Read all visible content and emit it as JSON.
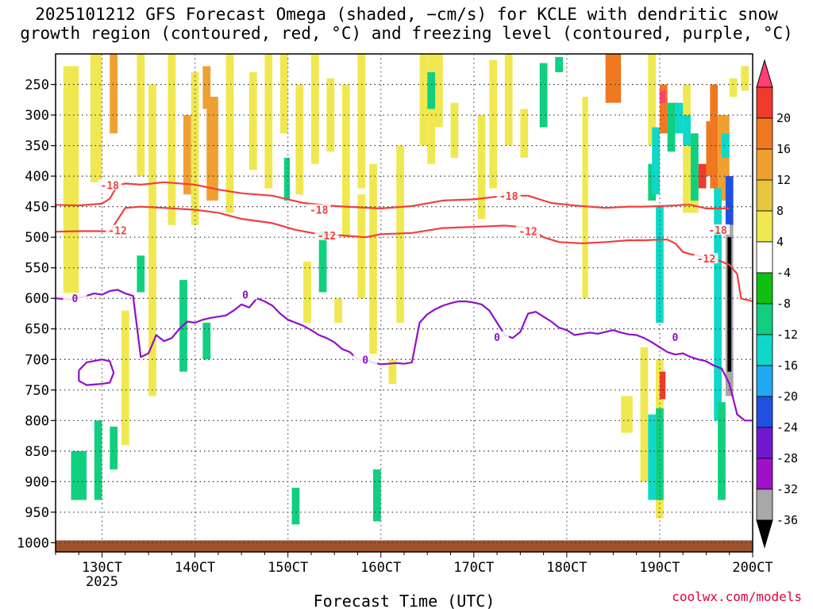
{
  "title": {
    "line1": "2025101212 GFS Forecast Omega (shaded, −cm/s) for KCLE with dendritic snow",
    "line2": "growth region (contoured, red, °C) and freezing level (contoured, purple, °C)"
  },
  "watermark": "coolwx.com/models",
  "chart_data": {
    "type": "heatmap",
    "xlabel": "Forecast Time (UTC)",
    "x_ticks": [
      "130CT",
      "140CT",
      "150CT",
      "160CT",
      "170CT",
      "180CT",
      "190CT",
      "200CT"
    ],
    "x_tick_hours": [
      0,
      24,
      48,
      72,
      96,
      120,
      144,
      168
    ],
    "x_tick_sublabel": "2025",
    "x_range_hours": [
      -12,
      168
    ],
    "y_ticks": [
      250,
      300,
      350,
      400,
      450,
      500,
      550,
      600,
      650,
      700,
      750,
      800,
      850,
      900,
      950,
      1000
    ],
    "y_axis_units": "hPa",
    "y_range": [
      200,
      1015
    ],
    "grid": true,
    "colorbar": {
      "labels": [
        20,
        16,
        12,
        8,
        4,
        -4,
        -8,
        -12,
        -16,
        -20,
        -24,
        -28,
        -32,
        -36
      ],
      "colors": [
        "#ff4070",
        "#f03a2a",
        "#f07820",
        "#f0a030",
        "#e8c640",
        "#f0e850",
        "#ffffff",
        "#10c010",
        "#10d080",
        "#10d8c8",
        "#20a8f0",
        "#2050e0",
        "#7018d0",
        "#a010c8",
        "#a8a8a8",
        "#000000"
      ],
      "top_color": "#ff4070",
      "bottom_color": "#000000"
    },
    "surface_color": "#a0522d",
    "series": [
      {
        "name": "-18",
        "color": "#f04040",
        "labels": [
          [
            2,
            415
          ],
          [
            56,
            455
          ],
          [
            105,
            432
          ],
          [
            159,
            488
          ]
        ],
        "x": [
          -12,
          -6,
          0,
          2,
          4,
          6,
          10,
          16,
          24,
          30,
          36,
          44,
          52,
          60,
          66,
          72,
          80,
          88,
          96,
          104,
          110,
          116,
          122,
          130,
          136,
          140,
          144,
          148,
          150,
          152,
          154,
          156,
          158,
          160,
          162
        ],
        "y": [
          447,
          448,
          445,
          437,
          415,
          412,
          414,
          410,
          414,
          422,
          428,
          432,
          444,
          449,
          451,
          453,
          449,
          440,
          438,
          432,
          432,
          444,
          448,
          452,
          450,
          450,
          449,
          448,
          447,
          447,
          450,
          453,
          453,
          453,
          453
        ]
      },
      {
        "name": "-12",
        "color": "#f04040",
        "labels": [
          [
            4,
            489
          ],
          [
            58,
            497
          ],
          [
            110,
            490
          ],
          [
            156,
            535
          ]
        ],
        "x": [
          -12,
          -6,
          0,
          2,
          6,
          10,
          16,
          24,
          30,
          36,
          44,
          50,
          56,
          62,
          68,
          72,
          80,
          88,
          96,
          104,
          110,
          114,
          118,
          124,
          130,
          136,
          140,
          144,
          146,
          148,
          150,
          152,
          154,
          156,
          158,
          162,
          164,
          165,
          166,
          167,
          168
        ],
        "y": [
          491,
          490,
          490,
          491,
          452,
          450,
          452,
          455,
          460,
          470,
          477,
          488,
          495,
          497,
          500,
          495,
          493,
          485,
          483,
          481,
          484,
          500,
          508,
          510,
          508,
          505,
          505,
          504,
          504,
          510,
          524,
          528,
          530,
          535,
          535,
          545,
          560,
          600,
          602,
          603,
          605
        ]
      },
      {
        "name": "0",
        "color": "#9010c8",
        "labels": [
          [
            -7,
            600
          ],
          [
            37,
            594
          ],
          [
            68,
            700
          ],
          [
            102,
            663
          ],
          [
            148,
            663
          ]
        ],
        "x": [
          -12,
          -8,
          -4,
          -2,
          0,
          2,
          4,
          6,
          8,
          10,
          12,
          14,
          16,
          18,
          20,
          22,
          24,
          26,
          28,
          30,
          32,
          34,
          36,
          38,
          40,
          42,
          44,
          46,
          48,
          50,
          52,
          54,
          56,
          58,
          60,
          62,
          64,
          66,
          68,
          70,
          72,
          74,
          76,
          78,
          80,
          82,
          84,
          86,
          88,
          90,
          92,
          94,
          96,
          98,
          100,
          102,
          104,
          106,
          108,
          110,
          112,
          114,
          116,
          118,
          120,
          122,
          124,
          126,
          128,
          130,
          132,
          134,
          136,
          138,
          140,
          142,
          144,
          146,
          148,
          150,
          152,
          154,
          156,
          158,
          160,
          162,
          164,
          166,
          168
        ],
        "y": [
          600,
          602,
          596,
          592,
          594,
          588,
          586,
          592,
          596,
          696,
          690,
          660,
          670,
          665,
          650,
          638,
          640,
          635,
          632,
          630,
          628,
          620,
          610,
          615,
          600,
          605,
          612,
          625,
          635,
          640,
          645,
          652,
          660,
          665,
          672,
          683,
          688,
          700,
          700,
          705,
          708,
          707,
          706,
          707,
          705,
          640,
          626,
          618,
          612,
          608,
          605,
          605,
          607,
          610,
          620,
          640,
          660,
          665,
          655,
          625,
          622,
          630,
          638,
          648,
          652,
          660,
          658,
          656,
          658,
          655,
          652,
          656,
          659,
          660,
          665,
          672,
          680,
          688,
          692,
          690,
          696,
          700,
          703,
          710,
          715,
          740,
          790,
          800,
          800
        ]
      },
      {
        "name": "0-closed",
        "color": "#9010c8",
        "labels": [],
        "x": [
          -6,
          -4,
          0,
          2,
          3,
          2,
          0,
          -4,
          -6,
          -6
        ],
        "y": [
          718,
          705,
          700,
          703,
          722,
          738,
          740,
          742,
          735,
          718
        ]
      }
    ],
    "omega_patches": [
      {
        "x": [
          -10,
          -6
        ],
        "p": [
          220,
          600
        ],
        "v": 6
      },
      {
        "x": [
          -3,
          0
        ],
        "p": [
          200,
          410
        ],
        "v": 6
      },
      {
        "x": [
          2,
          4
        ],
        "p": [
          200,
          330
        ],
        "v": 8
      },
      {
        "x": [
          9,
          11
        ],
        "p": [
          200,
          400
        ],
        "v": 7
      },
      {
        "x": [
          12,
          14
        ],
        "p": [
          250,
          760
        ],
        "v": 6
      },
      {
        "x": [
          17,
          19
        ],
        "p": [
          200,
          480
        ],
        "v": 6
      },
      {
        "x": [
          21,
          23
        ],
        "p": [
          300,
          430
        ],
        "v": 9
      },
      {
        "x": [
          23,
          25
        ],
        "p": [
          230,
          480
        ],
        "v": 6
      },
      {
        "x": [
          26,
          28
        ],
        "p": [
          220,
          290
        ],
        "v": 8
      },
      {
        "x": [
          27,
          30
        ],
        "p": [
          270,
          440
        ],
        "v": 9
      },
      {
        "x": [
          32,
          34
        ],
        "p": [
          200,
          460
        ],
        "v": 6
      },
      {
        "x": [
          38,
          40
        ],
        "p": [
          230,
          390
        ],
        "v": 6
      },
      {
        "x": [
          42,
          44
        ],
        "p": [
          200,
          420
        ],
        "v": 6
      },
      {
        "x": [
          46,
          48
        ],
        "p": [
          200,
          330
        ],
        "v": 6
      },
      {
        "x": [
          50,
          52
        ],
        "p": [
          250,
          430
        ],
        "v": 6
      },
      {
        "x": [
          54,
          56
        ],
        "p": [
          200,
          380
        ],
        "v": 6
      },
      {
        "x": [
          58,
          60
        ],
        "p": [
          240,
          360
        ],
        "v": 6
      },
      {
        "x": [
          62,
          64
        ],
        "p": [
          250,
          500
        ],
        "v": 6
      },
      {
        "x": [
          66,
          68
        ],
        "p": [
          200,
          420
        ],
        "v": 6
      },
      {
        "x": [
          69,
          71
        ],
        "p": [
          380,
          700
        ],
        "v": 6
      },
      {
        "x": [
          76,
          78
        ],
        "p": [
          350,
          640
        ],
        "v": 6
      },
      {
        "x": [
          82,
          84
        ],
        "p": [
          200,
          350
        ],
        "v": 6
      },
      {
        "x": [
          84,
          86
        ],
        "p": [
          200,
          380
        ],
        "v": 6
      },
      {
        "x": [
          86,
          88
        ],
        "p": [
          200,
          320
        ],
        "v": 6
      },
      {
        "x": [
          90,
          92
        ],
        "p": [
          280,
          370
        ],
        "v": 6
      },
      {
        "x": [
          97,
          99
        ],
        "p": [
          300,
          470
        ],
        "v": 6
      },
      {
        "x": [
          100,
          102
        ],
        "p": [
          210,
          420
        ],
        "v": 6
      },
      {
        "x": [
          104,
          106
        ],
        "p": [
          200,
          350
        ],
        "v": 6
      },
      {
        "x": [
          108,
          110
        ],
        "p": [
          290,
          370
        ],
        "v": 6
      },
      {
        "x": [
          124,
          125.5
        ],
        "p": [
          270,
          600
        ],
        "v": 6
      },
      {
        "x": [
          130,
          134
        ],
        "p": [
          200,
          280
        ],
        "v": 12
      },
      {
        "x": [
          141,
          143
        ],
        "p": [
          200,
          350
        ],
        "v": 6
      },
      {
        "x": [
          144,
          146
        ],
        "p": [
          250,
          330
        ],
        "v": 12
      },
      {
        "x": [
          147,
          150
        ],
        "p": [
          280,
          330
        ],
        "v": 6
      },
      {
        "x": [
          150,
          152
        ],
        "p": [
          250,
          460
        ],
        "v": 6
      },
      {
        "x": [
          152,
          154
        ],
        "p": [
          400,
          460
        ],
        "v": 6
      },
      {
        "x": [
          157,
          159
        ],
        "p": [
          250,
          420
        ],
        "v": 12
      },
      {
        "x": [
          159,
          162
        ],
        "p": [
          300,
          440
        ],
        "v": 8
      },
      {
        "x": [
          162,
          164
        ],
        "p": [
          240,
          270
        ],
        "v": 6
      },
      {
        "x": [
          165,
          167
        ],
        "p": [
          220,
          260
        ],
        "v": 6
      },
      {
        "x": [
          134,
          137
        ],
        "p": [
          760,
          820
        ],
        "v": 6
      },
      {
        "x": [
          139,
          141
        ],
        "p": [
          680,
          900
        ],
        "v": 6
      },
      {
        "x": [
          143,
          145
        ],
        "p": [
          700,
          960
        ],
        "v": 6
      },
      {
        "x": [
          5,
          7
        ],
        "p": [
          620,
          840
        ],
        "v": 6
      },
      {
        "x": [
          52,
          54
        ],
        "p": [
          540,
          640
        ],
        "v": 6
      },
      {
        "x": [
          60,
          62
        ],
        "p": [
          600,
          640
        ],
        "v": 6
      },
      {
        "x": [
          66,
          68
        ],
        "p": [
          430,
          600
        ],
        "v": 6
      },
      {
        "x": [
          74,
          76
        ],
        "p": [
          700,
          740
        ],
        "v": 6
      },
      {
        "x": [
          144,
          145.5
        ],
        "p": [
          720,
          765
        ],
        "v": 16
      },
      {
        "x": [
          144,
          145.5
        ],
        "p": [
          260,
          280
        ],
        "v": 20
      },
      {
        "x": [
          154,
          156
        ],
        "p": [
          380,
          420
        ],
        "v": 16
      },
      {
        "x": [
          156,
          158
        ],
        "p": [
          310,
          400
        ],
        "v": 12
      },
      {
        "x": [
          -8,
          -4
        ],
        "p": [
          850,
          930
        ],
        "v": -8
      },
      {
        "x": [
          -2,
          0
        ],
        "p": [
          800,
          930
        ],
        "v": -8
      },
      {
        "x": [
          2,
          4
        ],
        "p": [
          810,
          880
        ],
        "v": -8
      },
      {
        "x": [
          9,
          11
        ],
        "p": [
          530,
          590
        ],
        "v": -8
      },
      {
        "x": [
          20,
          22
        ],
        "p": [
          570,
          720
        ],
        "v": -8
      },
      {
        "x": [
          26,
          28
        ],
        "p": [
          640,
          700
        ],
        "v": -8
      },
      {
        "x": [
          47,
          48.5
        ],
        "p": [
          370,
          440
        ],
        "v": -8
      },
      {
        "x": [
          56,
          58
        ],
        "p": [
          490,
          590
        ],
        "v": -8
      },
      {
        "x": [
          49,
          51
        ],
        "p": [
          910,
          970
        ],
        "v": -8
      },
      {
        "x": [
          70,
          72
        ],
        "p": [
          880,
          965
        ],
        "v": -8
      },
      {
        "x": [
          84,
          86
        ],
        "p": [
          230,
          290
        ],
        "v": -8
      },
      {
        "x": [
          113,
          115
        ],
        "p": [
          215,
          320
        ],
        "v": -8
      },
      {
        "x": [
          117,
          119
        ],
        "p": [
          205,
          230
        ],
        "v": -8
      },
      {
        "x": [
          141,
          143
        ],
        "p": [
          380,
          440
        ],
        "v": -8
      },
      {
        "x": [
          146,
          148
        ],
        "p": [
          280,
          360
        ],
        "v": -8
      },
      {
        "x": [
          142,
          144
        ],
        "p": [
          320,
          430
        ],
        "v": -12
      },
      {
        "x": [
          143,
          145
        ],
        "p": [
          450,
          640
        ],
        "v": -12
      },
      {
        "x": [
          148,
          150
        ],
        "p": [
          280,
          330
        ],
        "v": -12
      },
      {
        "x": [
          150,
          152
        ],
        "p": [
          300,
          350
        ],
        "v": -12
      },
      {
        "x": [
          152,
          154
        ],
        "p": [
          330,
          440
        ],
        "v": -8
      },
      {
        "x": [
          158,
          160
        ],
        "p": [
          420,
          800
        ],
        "v": -12
      },
      {
        "x": [
          160,
          162
        ],
        "p": [
          330,
          370
        ],
        "v": -12
      },
      {
        "x": [
          141,
          143
        ],
        "p": [
          790,
          930
        ],
        "v": -12
      },
      {
        "x": [
          143,
          145
        ],
        "p": [
          780,
          930
        ],
        "v": -8
      },
      {
        "x": [
          159,
          161
        ],
        "p": [
          770,
          930
        ],
        "v": -8
      },
      {
        "x": [
          161,
          163
        ],
        "p": [
          400,
          480
        ],
        "v": -20
      },
      {
        "x": [
          161,
          163
        ],
        "p": [
          480,
          760
        ],
        "v": -32
      },
      {
        "x": [
          161.5,
          162.5
        ],
        "p": [
          500,
          720
        ],
        "v": -36
      }
    ]
  }
}
